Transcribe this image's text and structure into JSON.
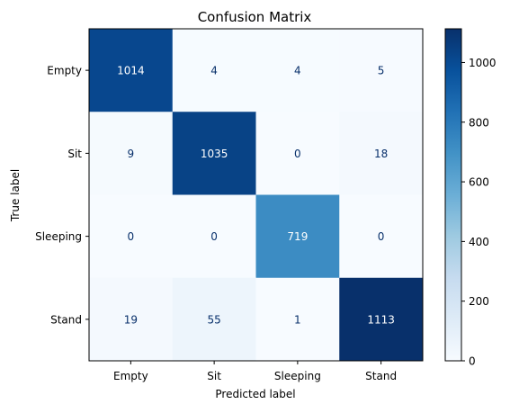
{
  "chart_data": {
    "type": "heatmap",
    "title": "Confusion Matrix",
    "xlabel": "Predicted label",
    "ylabel": "True label",
    "x_categories": [
      "Empty",
      "Sit",
      "Sleeping",
      "Stand"
    ],
    "y_categories": [
      "Empty",
      "Sit",
      "Sleeping",
      "Stand"
    ],
    "matrix": [
      [
        1014,
        4,
        4,
        5
      ],
      [
        9,
        1035,
        0,
        18
      ],
      [
        0,
        0,
        719,
        0
      ],
      [
        19,
        55,
        1,
        1113
      ]
    ],
    "colormap": "Blues",
    "colorbar": {
      "min": 0,
      "max": 1113,
      "ticks": [
        0,
        200,
        400,
        600,
        800,
        1000
      ]
    }
  }
}
